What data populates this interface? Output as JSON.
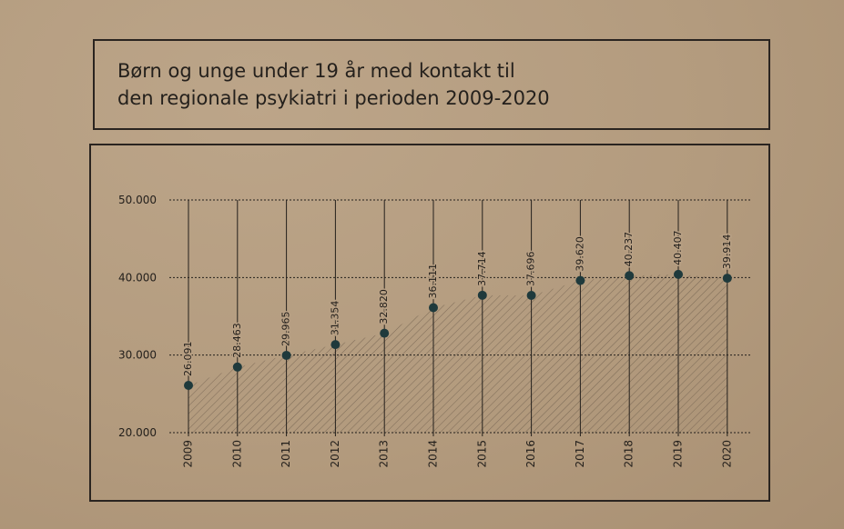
{
  "title": "Børn og unge under 19 år med kontakt til\nden regionale psykiatri i perioden 2009-2020",
  "colors": {
    "ink": "#24201c",
    "marker": "#1f3a3c",
    "hatch": "#6e5d4c"
  },
  "chart_data": {
    "type": "area",
    "title": "Børn og unge under 19 år med kontakt til den regionale psykiatri i perioden 2009-2020",
    "xlabel": "",
    "ylabel": "",
    "x": [
      "2009",
      "2010",
      "2011",
      "2012",
      "2013",
      "2014",
      "2015",
      "2016",
      "2017",
      "2018",
      "2019",
      "2020"
    ],
    "values": [
      26091,
      28463,
      29965,
      31354,
      32820,
      36111,
      37714,
      37696,
      39620,
      40237,
      40407,
      39914
    ],
    "value_labels": [
      "26.091",
      "28.463",
      "29.965",
      "31.354",
      "32.820",
      "36.111",
      "37.714",
      "37.696",
      "39.620",
      "40.237",
      "40.407",
      "39.914"
    ],
    "ylim": [
      20000,
      50000
    ],
    "yticks": [
      20000,
      30000,
      40000,
      50000
    ],
    "ytick_labels": [
      "20.000",
      "30.000",
      "40.000",
      "50.000"
    ],
    "grid": true,
    "grid_style": "dotted horizontal",
    "fill": "hatched",
    "legend": "none"
  }
}
